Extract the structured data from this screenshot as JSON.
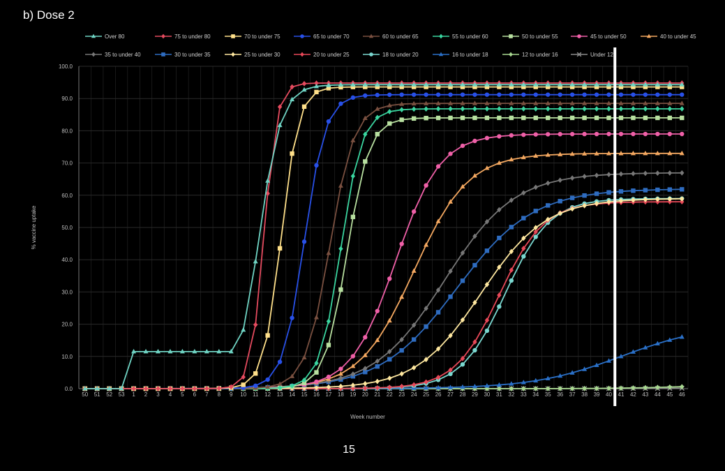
{
  "page": {
    "title": "b) Dose 2",
    "page_number": "15"
  },
  "colors": {
    "background": "#000000",
    "grid": "#2a2a2a",
    "axis": "#777777",
    "marker_line": "#ffffff"
  },
  "chart_data": {
    "type": "line",
    "xlabel": "Week number",
    "ylabel": "% vaccine uptake",
    "ylim": [
      0,
      100
    ],
    "yticks": [
      "0.0",
      "10.0",
      "20.0",
      "30.0",
      "40.0",
      "50.0",
      "60.0",
      "70.0",
      "80.0",
      "90.0",
      "100.0"
    ],
    "x": [
      "50",
      "51",
      "52",
      "53",
      "1",
      "2",
      "3",
      "4",
      "5",
      "6",
      "7",
      "8",
      "9",
      "10",
      "11",
      "12",
      "13",
      "14",
      "15",
      "16",
      "17",
      "18",
      "19",
      "20",
      "21",
      "22",
      "23",
      "24",
      "25",
      "26",
      "27",
      "28",
      "29",
      "30",
      "31",
      "32",
      "33",
      "34",
      "35",
      "36",
      "37",
      "38",
      "39",
      "40",
      "41",
      "42",
      "43",
      "44",
      "45",
      "46"
    ],
    "highlight_week": "41",
    "grid": true,
    "legend_position": "top",
    "series": [
      {
        "name": "Over 80",
        "color": "#6fd4c4",
        "marker": "triangle",
        "mid": 14.3,
        "slope": 1.1,
        "max": 94.3,
        "base": 11.5,
        "base_week": "1"
      },
      {
        "name": "75 to under 80",
        "color": "#e64b5f",
        "marker": "diamond",
        "mid": 14.7,
        "slope": 1.9,
        "max": 94.8
      },
      {
        "name": "70 to under 75",
        "color": "#ffe08a",
        "marker": "square",
        "mid": 16.1,
        "slope": 1.4,
        "max": 93.6
      },
      {
        "name": "65 to under 70",
        "color": "#2850e8",
        "marker": "circle",
        "mid": 18.0,
        "slope": 1.15,
        "max": 91.2
      },
      {
        "name": "60 to under 65",
        "color": "#7a5040",
        "marker": "triangle",
        "mid": 20.1,
        "slope": 1.0,
        "max": 88.5
      },
      {
        "name": "55 to under 60",
        "color": "#3ad6a0",
        "marker": "diamond",
        "mid": 21.0,
        "slope": 1.15,
        "max": 86.8
      },
      {
        "name": "50 to under 55",
        "color": "#b8e0a0",
        "marker": "square",
        "mid": 21.5,
        "slope": 1.1,
        "max": 84.0
      },
      {
        "name": "45 to under 50",
        "color": "#f060a8",
        "marker": "circle",
        "mid": 25.5,
        "slope": 0.55,
        "max": 79.0
      },
      {
        "name": "40 to under 45",
        "color": "#f4a860",
        "marker": "triangle",
        "mid": 27.0,
        "slope": 0.45,
        "max": 73.0
      },
      {
        "name": "35 to under 40",
        "color": "#777777",
        "marker": "diamond",
        "mid": 29.5,
        "slope": 0.35,
        "max": 67.0
      },
      {
        "name": "30 to under 35",
        "color": "#2e6cc0",
        "marker": "square",
        "mid": 30.5,
        "slope": 0.32,
        "max": 62.0
      },
      {
        "name": "25 to under 30",
        "color": "#ffe8a0",
        "marker": "diamond",
        "mid": 32.5,
        "slope": 0.38,
        "max": 59.0
      },
      {
        "name": "20 to under 25",
        "color": "#e84858",
        "marker": "diamond",
        "mid": 34.0,
        "slope": 0.55,
        "max": 58.0
      },
      {
        "name": "18 to under 20",
        "color": "#7ad8d0",
        "marker": "circle",
        "mid": 34.5,
        "slope": 0.55,
        "max": 59.0
      },
      {
        "name": "16 to under 18",
        "color": "#2a70c8",
        "marker": "triangle",
        "mid": 44.0,
        "slope": 0.28,
        "max": 20.0
      },
      {
        "name": "12 to under 16",
        "color": "#a8d890",
        "marker": "diamond",
        "mid": 48.0,
        "slope": 0.4,
        "max": 1.0
      },
      {
        "name": "Under 12",
        "color": "#8a8a8a",
        "marker": "cross",
        "mid": 50.0,
        "slope": 0.3,
        "max": 0.3
      }
    ]
  }
}
